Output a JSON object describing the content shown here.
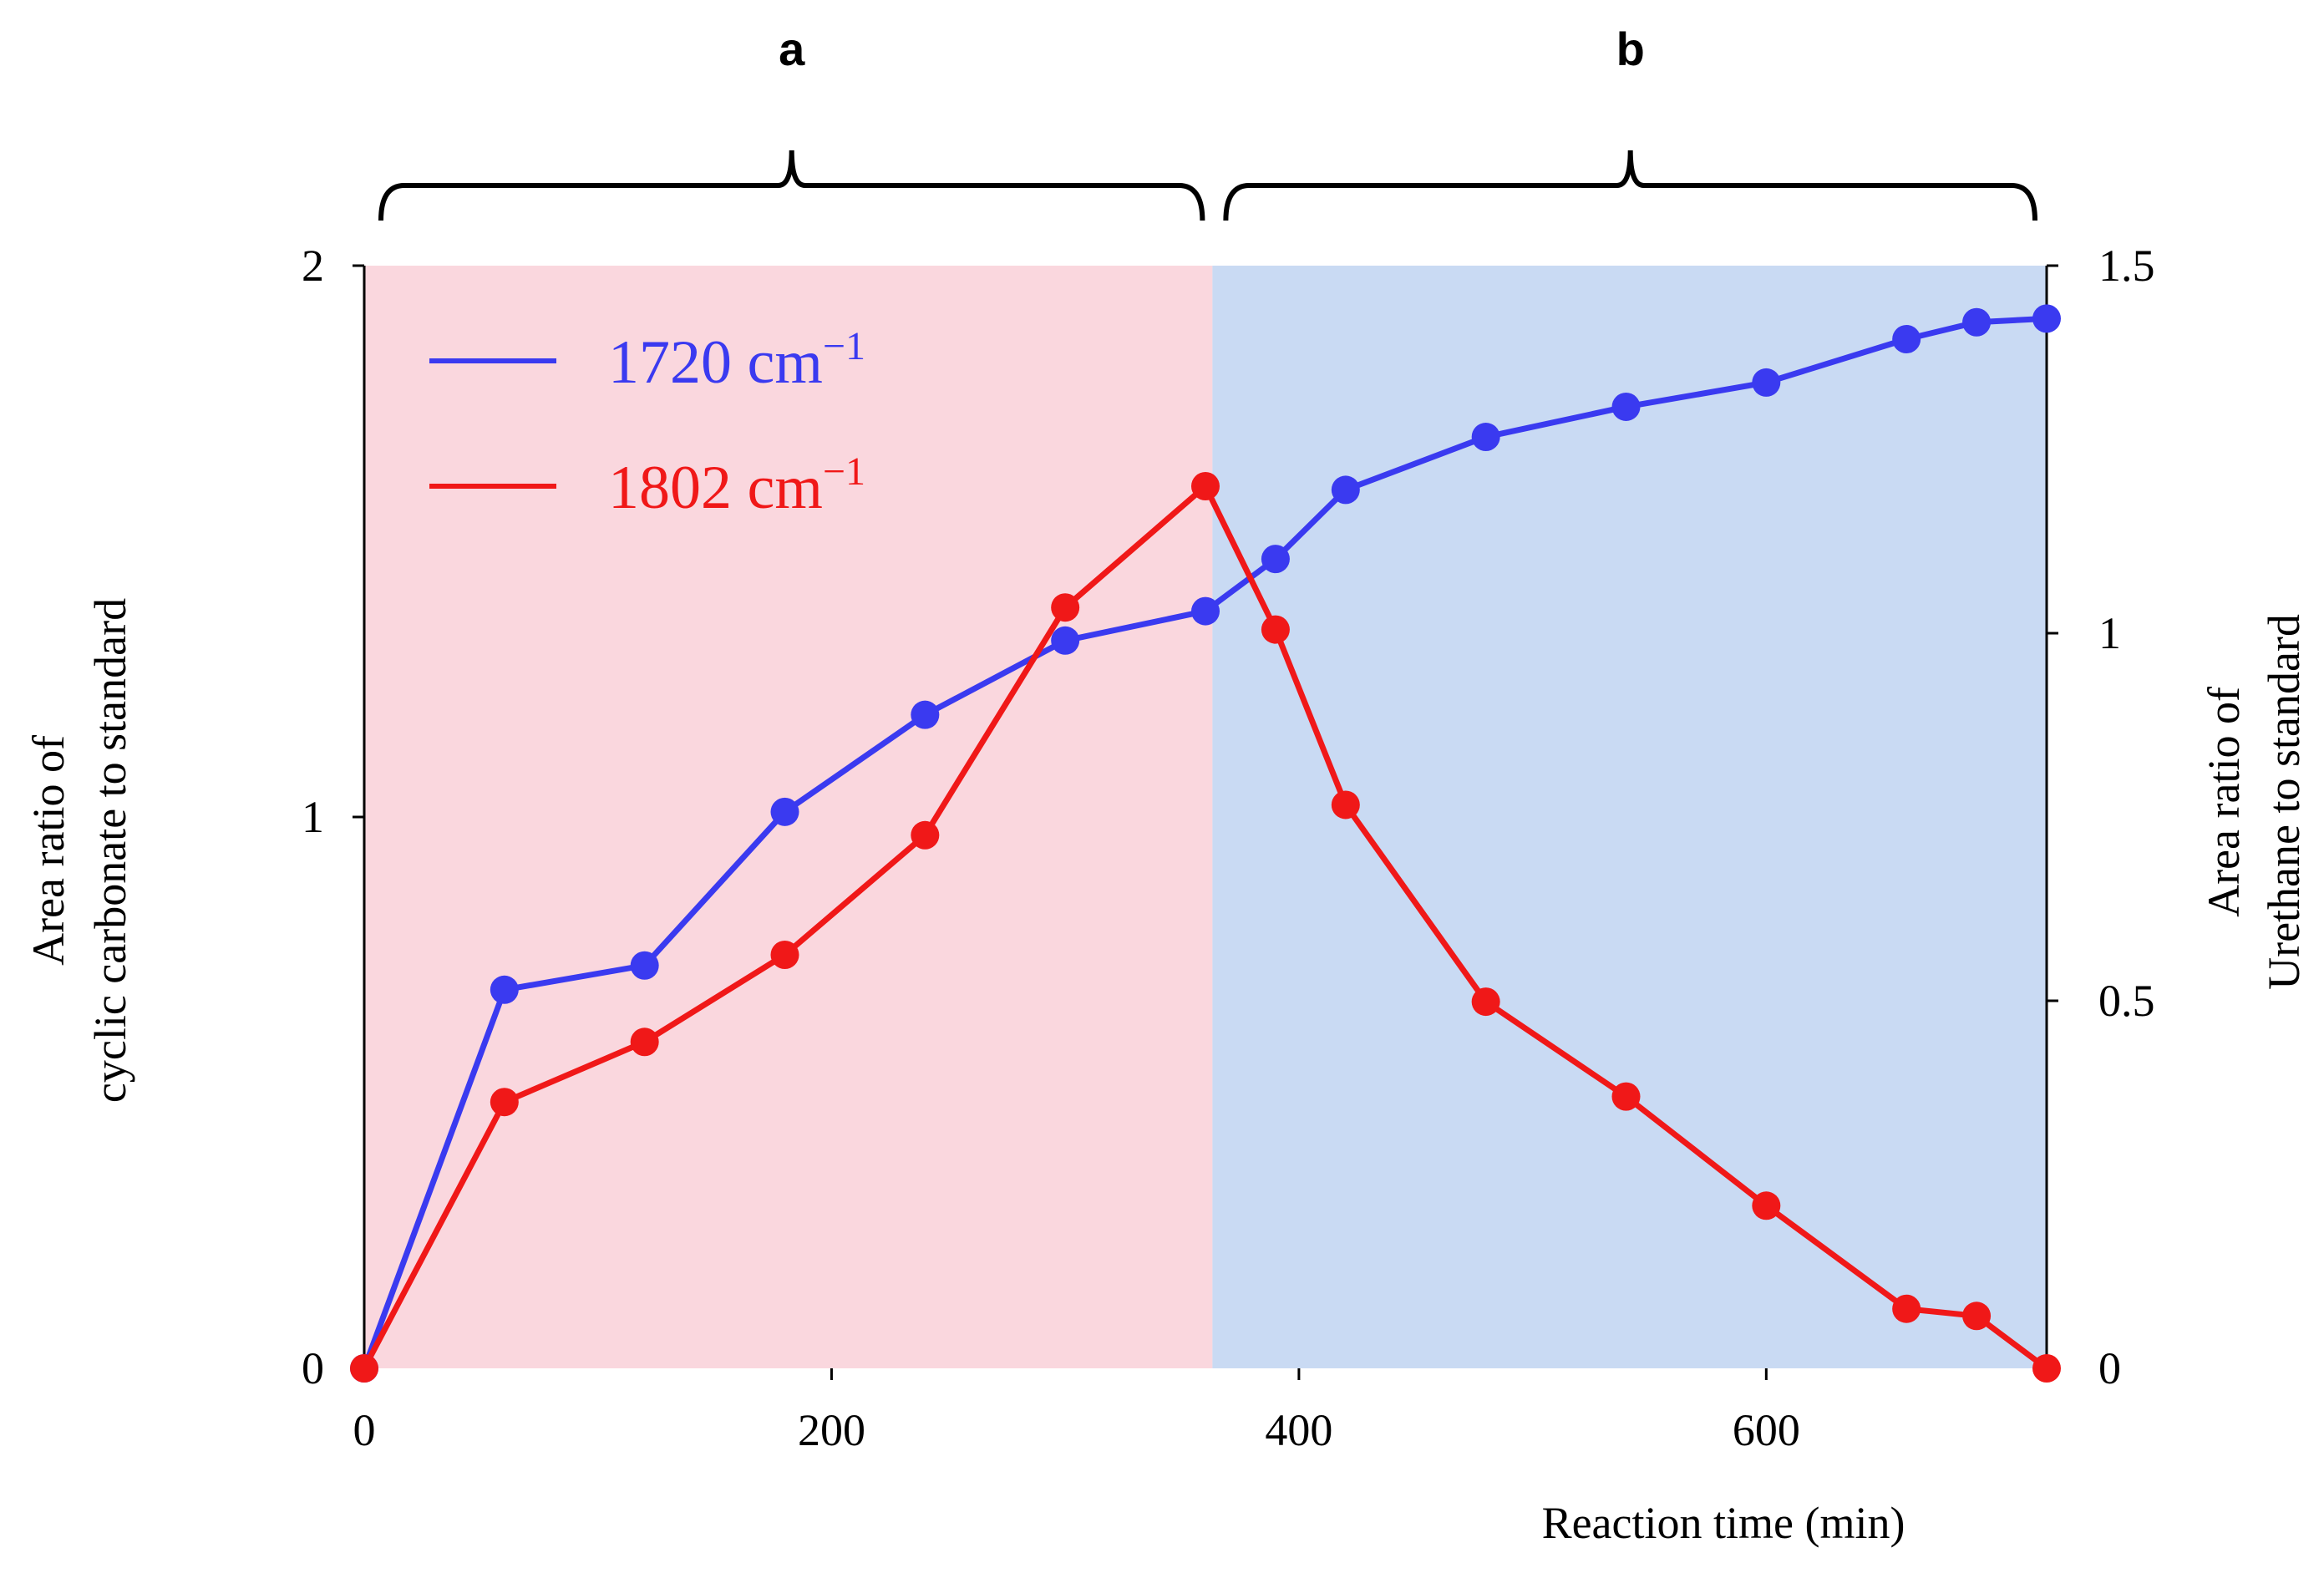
{
  "chart_data": {
    "type": "line",
    "x_label": "Reaction time (min)",
    "x_ticks": [
      "0",
      "200",
      "400",
      "600"
    ],
    "x_tick_values": [
      0,
      200,
      400,
      600
    ],
    "xlim": [
      0,
      720
    ],
    "y_left_label_lines": [
      "Area ratio of",
      "cyclic carbonate to standard"
    ],
    "y_left_ticks": [
      "0",
      "1",
      "2"
    ],
    "y_left_tick_values": [
      0,
      1,
      2
    ],
    "y_left_lim": [
      0,
      2
    ],
    "y_right_label_lines": [
      "Area ratio of",
      "Urethane to standard"
    ],
    "y_right_ticks": [
      "0",
      "0.5",
      "1",
      "1.5"
    ],
    "y_right_tick_values": [
      0,
      0.5,
      1,
      1.5
    ],
    "y_right_lim": [
      0,
      1.5
    ],
    "regions": [
      {
        "label": "a",
        "x_start": 0,
        "x_end": 363,
        "color": "#fad7de"
      },
      {
        "label": "b",
        "x_start": 363,
        "x_end": 720,
        "color": "#c9daf3"
      }
    ],
    "series": [
      {
        "name": "1720 cm",
        "superscript": "−1",
        "color": "#3a3af0",
        "axis": "right",
        "x": [
          0,
          60,
          120,
          180,
          240,
          300,
          360,
          390,
          420,
          480,
          540,
          600,
          660,
          690,
          720
        ],
        "y": [
          0,
          0.515,
          0.548,
          0.757,
          0.889,
          0.99,
          1.03,
          1.101,
          1.195,
          1.267,
          1.308,
          1.341,
          1.4,
          1.423,
          1.428
        ]
      },
      {
        "name": "1802 cm",
        "superscript": "−1",
        "color": "#f01818",
        "axis": "left",
        "x": [
          0,
          60,
          120,
          180,
          240,
          300,
          360,
          390,
          420,
          480,
          540,
          600,
          660,
          690,
          720
        ],
        "y": [
          0,
          0.483,
          0.592,
          0.75,
          0.967,
          1.38,
          1.6,
          1.34,
          1.022,
          0.665,
          0.493,
          0.295,
          0.108,
          0.095,
          0
        ]
      }
    ]
  }
}
